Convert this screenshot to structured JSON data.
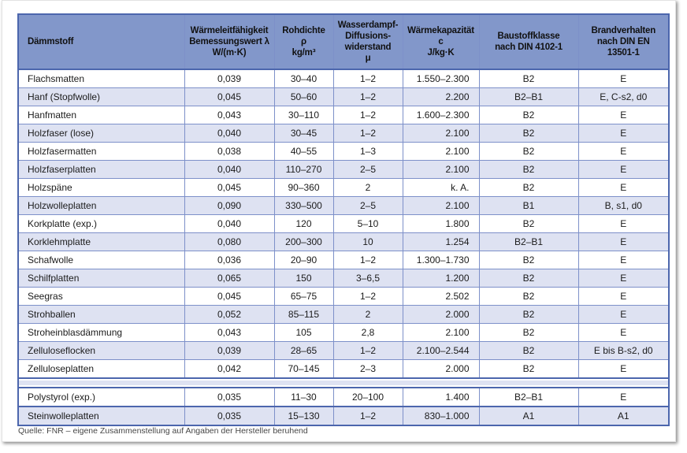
{
  "colors": {
    "header_bg": "#8297ca",
    "row_alt": "#dee2f2",
    "grid_border": "#7d90c9",
    "frame_border": "#4c66ad",
    "text": "#1b1b1b",
    "source_text": "#474747"
  },
  "table": {
    "columns": [
      {
        "key": "daemmstoff",
        "align": "al",
        "lines": [
          "Dämmstoff"
        ]
      },
      {
        "key": "waermeleitfaehigkeit",
        "align": "ac",
        "lines": [
          "Wärmeleitfähigkeit",
          "Bemessungswert λ",
          "W/(m·K)"
        ]
      },
      {
        "key": "rohdichte",
        "align": "ac",
        "lines": [
          "Rohdichte",
          "ρ",
          "kg/m³"
        ]
      },
      {
        "key": "wasserdampf-diffusionswiderstand",
        "align": "ac",
        "lines": [
          "Wasserdampf-",
          "Diffusions-",
          "widerstand",
          "μ"
        ]
      },
      {
        "key": "waermekapazitaet",
        "align": "ac",
        "lines": [
          "Wärmekapazität",
          "c",
          "J/kg·K"
        ]
      },
      {
        "key": "baustoffklasse",
        "align": "ac",
        "lines": [
          "Baustoffklasse",
          "nach DIN 4102-1"
        ]
      },
      {
        "key": "brandverhalten",
        "align": "ac",
        "lines": [
          "Brandverhalten",
          "nach DIN EN",
          "13501-1"
        ]
      }
    ],
    "cell_align": [
      "al",
      "ac",
      "ac",
      "ac",
      "ar",
      "ac",
      "ac"
    ],
    "sections": [
      {
        "rows": [
          [
            "Flachsmatten",
            "0,039",
            "30–40",
            "1–2",
            "1.550–2.300",
            "B2",
            "E"
          ],
          [
            "Hanf (Stopfwolle)",
            "0,045",
            "50–60",
            "1–2",
            "2.200",
            "B2–B1",
            "E, C-s2, d0"
          ],
          [
            "Hanfmatten",
            "0,043",
            "30–110",
            "1–2",
            "1.600–2.300",
            "B2",
            "E"
          ],
          [
            "Holzfaser (lose)",
            "0,040",
            "30–45",
            "1–2",
            "2.100",
            "B2",
            "E"
          ],
          [
            "Holzfasermatten",
            "0,038",
            "40–55",
            "1–3",
            "2.100",
            "B2",
            "E"
          ],
          [
            "Holzfaserplatten",
            "0,040",
            "110–270",
            "2–5",
            "2.100",
            "B2",
            "E"
          ],
          [
            "Holzspäne",
            "0,045",
            "90–360",
            "2",
            "k. A.",
            "B2",
            "E"
          ],
          [
            "Holzwolleplatten",
            "0,090",
            "330–500",
            "2–5",
            "2.100",
            "B1",
            "B, s1, d0"
          ],
          [
            "Korkplatte (exp.)",
            "0,040",
            "120",
            "5–10",
            "1.800",
            "B2",
            "E"
          ],
          [
            "Korklehmplatte",
            "0,080",
            "200–300",
            "10",
            "1.254",
            "B2–B1",
            "E"
          ],
          [
            "Schafwolle",
            "0,036",
            "20–90",
            "1–2",
            "1.300–1.730",
            "B2",
            "E"
          ],
          [
            "Schilfplatten",
            "0,065",
            "150",
            "3–6,5",
            "1.200",
            "B2",
            "E"
          ],
          [
            "Seegras",
            "0,045",
            "65–75",
            "1–2",
            "2.502",
            "B2",
            "E"
          ],
          [
            "Strohballen",
            "0,052",
            "85–115",
            "2",
            "2.000",
            "B2",
            "E"
          ],
          [
            "Stroheinblasdämmung",
            "0,043",
            "105",
            "2,8",
            "2.100",
            "B2",
            "E"
          ],
          [
            "Zelluloseflocken",
            "0,039",
            "28–65",
            "1–2",
            "2.100–2.544",
            "B2",
            "E bis B-s2, d0"
          ],
          [
            "Zelluloseplatten",
            "0,042",
            "70–145",
            "2–3",
            "2.000",
            "B2",
            "E"
          ]
        ]
      },
      {
        "rows": [
          [
            "Polystyrol (exp.)",
            "0,035",
            "11–30",
            "20–100",
            "1.400",
            "B2–B1",
            "E"
          ],
          [
            "Steinwolleplatten",
            "0,035",
            "15–130",
            "1–2",
            "830–1.000",
            "A1",
            "A1"
          ]
        ]
      }
    ]
  },
  "footer": {
    "source": "Quelle: FNR – eigene Zusammenstellung auf Angaben der Hersteller beruhend"
  }
}
